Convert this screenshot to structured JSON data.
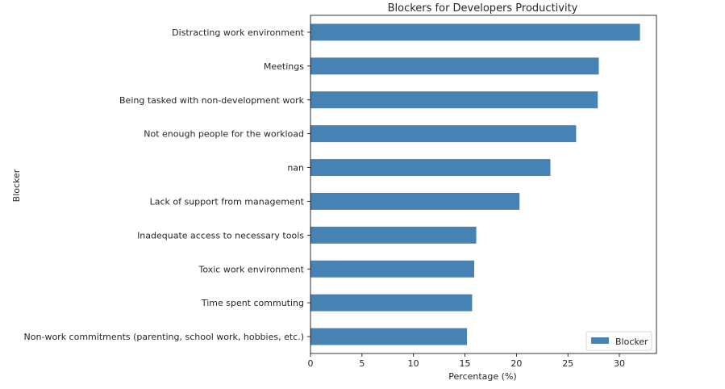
{
  "chart_data": {
    "type": "bar",
    "orientation": "horizontal",
    "title": "Blockers for Developers Productivity",
    "xlabel": "Percentage (%)",
    "ylabel": "Blocker",
    "xlim": [
      0,
      33.6
    ],
    "xticks": [
      0,
      5,
      10,
      15,
      20,
      25,
      30
    ],
    "categories": [
      "Distracting work environment",
      "Meetings",
      "Being tasked with non-development work",
      "Not enough people for the workload",
      "nan",
      "Lack of support from management",
      "Inadequate access to necessary tools",
      "Toxic work environment",
      "Time spent commuting",
      "Non-work commitments (parenting, school work, hobbies, etc.)"
    ],
    "series": [
      {
        "name": "Blocker",
        "color": "#4682b4",
        "values": [
          32.0,
          28.0,
          27.9,
          25.8,
          23.3,
          20.3,
          16.1,
          15.9,
          15.7,
          15.2
        ]
      }
    ],
    "legend": {
      "position": "lower-right",
      "entries": [
        "Blocker"
      ]
    },
    "grid": false
  }
}
